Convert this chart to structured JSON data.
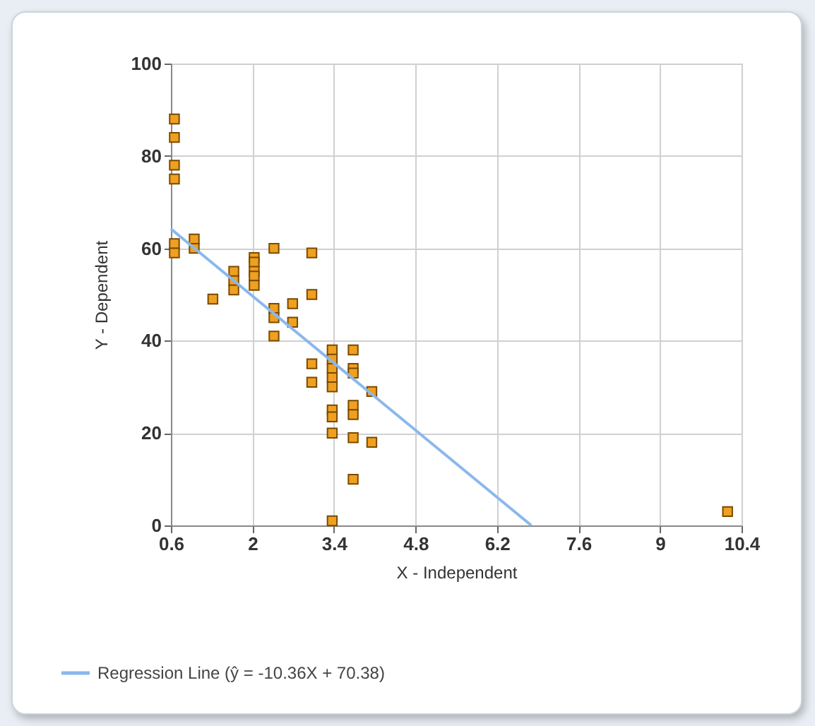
{
  "chart_data": {
    "type": "scatter",
    "xlabel": "X - Independent",
    "ylabel": "Y - Dependent",
    "xlim": [
      0.6,
      10.4
    ],
    "xticks": [
      0.6,
      2,
      3.4,
      4.8,
      6.2,
      7.6,
      9,
      10.4
    ],
    "ylim": [
      0,
      100
    ],
    "yticks": [
      0,
      20,
      40,
      60,
      80,
      100
    ],
    "grid": true,
    "legend": "bottom left",
    "series": [
      {
        "marker": "square",
        "color": "#f0a020",
        "x": [
          0.66,
          0.66,
          0.66,
          0.66,
          0.66,
          0.66,
          1.0,
          1.0,
          1.32,
          1.68,
          1.68,
          1.68,
          2.03,
          2.03,
          2.03,
          2.03,
          2.03,
          2.37,
          2.37,
          2.37,
          2.37,
          2.69,
          2.69,
          3.02,
          3.02,
          3.02,
          3.02,
          3.37,
          3.37,
          3.37,
          3.37,
          3.37,
          3.37,
          3.37,
          3.37,
          3.37,
          3.73,
          3.73,
          3.73,
          3.73,
          3.73,
          3.73,
          3.73,
          4.05,
          4.05,
          10.16
        ],
        "values": [
          88,
          84,
          78,
          75,
          61,
          59,
          62,
          60,
          49,
          55,
          53,
          51,
          58,
          57,
          55,
          54,
          52,
          60,
          47,
          45,
          41,
          48,
          44,
          59,
          50,
          35,
          31,
          38,
          36,
          34,
          32,
          30,
          25,
          23.5,
          20,
          1,
          38,
          34,
          33,
          26,
          24,
          19,
          10,
          29,
          18,
          3
        ]
      },
      {
        "type": "line",
        "name": "Regression Line (ŷ = -10.36X + 70.38)",
        "color": "#8ab8ec",
        "x": [
          0.6,
          6.79
        ],
        "values": [
          64.2,
          0
        ]
      }
    ]
  }
}
